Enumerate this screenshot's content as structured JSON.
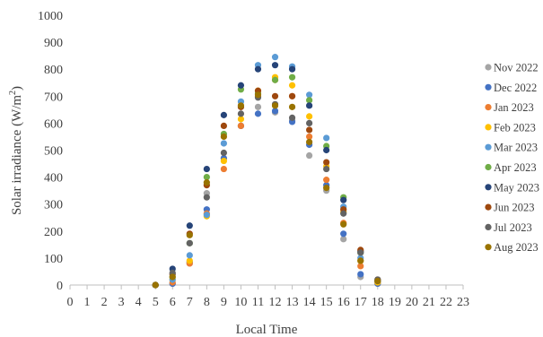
{
  "chart_data": {
    "type": "scatter",
    "xlabel": "Local Time",
    "ylabel_main": "Solar irradiance  (W/m",
    "ylabel_sup": "2",
    "ylabel_close": ")",
    "xlim": [
      0,
      23
    ],
    "ylim": [
      0,
      1000
    ],
    "xticks": [
      0,
      1,
      2,
      3,
      4,
      5,
      6,
      7,
      8,
      9,
      10,
      11,
      12,
      13,
      14,
      15,
      16,
      17,
      18,
      19,
      20,
      21,
      22,
      23
    ],
    "yticks": [
      0,
      100,
      200,
      300,
      400,
      500,
      600,
      700,
      800,
      900,
      1000
    ],
    "grid": false,
    "legend_position": "right",
    "x": [
      5,
      6,
      7,
      8,
      9,
      10,
      11,
      12,
      13,
      14,
      15,
      16,
      17,
      18
    ],
    "series": [
      {
        "name": "Nov 2022",
        "color": "#a5a5a5",
        "values": [
          0,
          5,
          80,
          340,
          470,
          590,
          660,
          640,
          610,
          480,
          350,
          170,
          30,
          5
        ]
      },
      {
        "name": "Dec 2022",
        "color": "#4472c4",
        "values": [
          0,
          5,
          85,
          280,
          470,
          590,
          635,
          645,
          605,
          520,
          370,
          190,
          40,
          5
        ]
      },
      {
        "name": "Jan 2023",
        "color": "#ed7d31",
        "values": [
          0,
          10,
          80,
          265,
          430,
          590,
          700,
          760,
          700,
          550,
          390,
          230,
          70,
          10
        ]
      },
      {
        "name": "Feb 2023",
        "color": "#ffc000",
        "values": [
          0,
          20,
          90,
          255,
          460,
          615,
          720,
          770,
          740,
          625,
          440,
          270,
          90,
          10
        ]
      },
      {
        "name": "Mar 2023",
        "color": "#5b9bd5",
        "values": [
          0,
          20,
          110,
          260,
          525,
          680,
          815,
          845,
          810,
          705,
          545,
          290,
          100,
          15
        ]
      },
      {
        "name": "Apr 2023",
        "color": "#70ad47",
        "values": [
          0,
          30,
          155,
          400,
          560,
          725,
          710,
          760,
          770,
          685,
          515,
          325,
          120,
          15
        ]
      },
      {
        "name": "May 2023",
        "color": "#264478",
        "values": [
          0,
          60,
          220,
          430,
          630,
          740,
          800,
          815,
          800,
          665,
          500,
          315,
          125,
          15
        ]
      },
      {
        "name": "Jun 2023",
        "color": "#9e480e",
        "values": [
          0,
          40,
          190,
          370,
          590,
          660,
          720,
          700,
          700,
          575,
          455,
          280,
          130,
          20
        ]
      },
      {
        "name": "Jul 2023",
        "color": "#636363",
        "values": [
          0,
          45,
          155,
          325,
          490,
          635,
          695,
          670,
          620,
          600,
          430,
          265,
          120,
          20
        ]
      },
      {
        "name": "Aug 2023",
        "color": "#997300",
        "values": [
          0,
          30,
          185,
          380,
          550,
          665,
          705,
          665,
          660,
          530,
          360,
          225,
          90,
          15
        ]
      }
    ]
  }
}
